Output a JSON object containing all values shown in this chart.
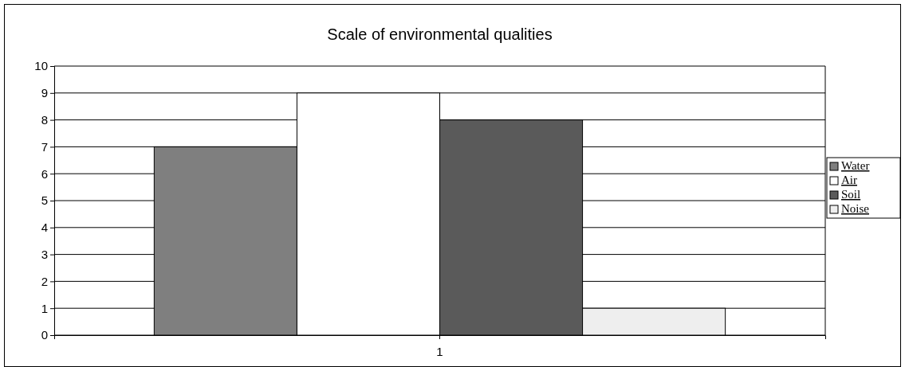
{
  "chart_data": {
    "type": "bar",
    "title": "Scale of environmental qualities",
    "categories": [
      "1"
    ],
    "series": [
      {
        "name": "Water",
        "color": "#7f7f7f",
        "values": [
          7
        ]
      },
      {
        "name": "Air",
        "color": "#ffffff",
        "values": [
          9
        ]
      },
      {
        "name": "Soil",
        "color": "#5a5a5a",
        "values": [
          8
        ]
      },
      {
        "name": "Noise",
        "color": "#eeeeee",
        "values": [
          1
        ]
      }
    ],
    "ylim": [
      0,
      10
    ],
    "yticks": [
      0,
      1,
      2,
      3,
      4,
      5,
      6,
      7,
      8,
      9,
      10
    ],
    "grid": "y",
    "legend": "right"
  }
}
